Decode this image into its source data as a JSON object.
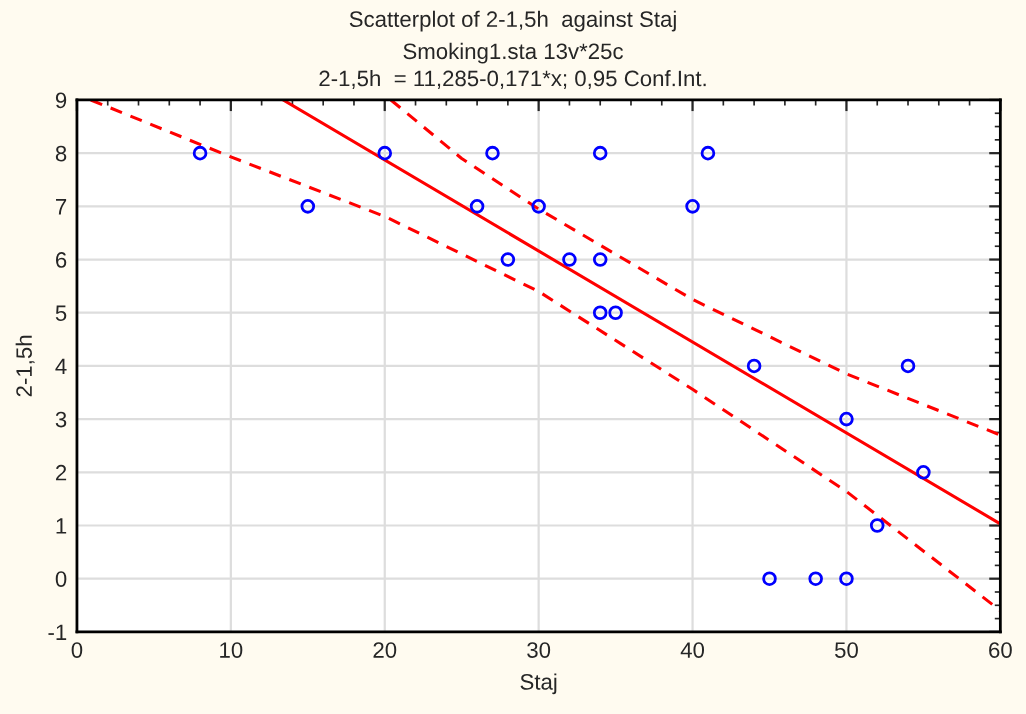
{
  "chart_data": {
    "type": "scatter",
    "title": "Scatterplot of 2-1,5h  against Staj",
    "subtitle": "Smoking1.sta 13v*25c\n2-1,5h  = 11,285-0,171*x; 0,95 Conf.Int.",
    "xlabel": "Staj",
    "ylabel": "2-1,5h",
    "xlim": [
      0,
      60
    ],
    "ylim": [
      -1,
      9
    ],
    "xticks": [
      0,
      10,
      20,
      30,
      40,
      50,
      60
    ],
    "yticks": [
      -1,
      0,
      1,
      2,
      3,
      4,
      5,
      6,
      7,
      8,
      9
    ],
    "grid": true,
    "series": [
      {
        "color": "#0000ff",
        "marker": "circle",
        "x": [
          8,
          15,
          20,
          26,
          27,
          28,
          30,
          32,
          34,
          34,
          34,
          35,
          40,
          41,
          44,
          45,
          48,
          50,
          50,
          52,
          54,
          55
        ],
        "values": [
          8,
          7,
          8,
          7,
          8,
          6,
          7,
          6,
          8,
          6,
          5,
          5,
          7,
          8,
          4,
          0,
          0,
          0,
          3,
          1,
          4,
          2
        ]
      },
      {
        "type": "line",
        "color": "#ff0000",
        "line_style": "solid",
        "x": [
          13.4,
          60
        ],
        "values": [
          9,
          1.03
        ]
      },
      {
        "type": "line",
        "color": "#ff0000",
        "line_style": "dashed",
        "x": [
          20.4,
          25,
          30,
          40,
          50,
          60
        ],
        "values": [
          9,
          7.9,
          6.95,
          5.25,
          3.85,
          2.7
        ]
      },
      {
        "type": "line",
        "color": "#ff0000",
        "line_style": "dashed",
        "x": [
          0.9,
          10,
          20,
          30,
          40,
          50,
          60
        ],
        "values": [
          9,
          7.93,
          6.81,
          5.4,
          3.56,
          1.64,
          -0.6
        ]
      }
    ]
  }
}
